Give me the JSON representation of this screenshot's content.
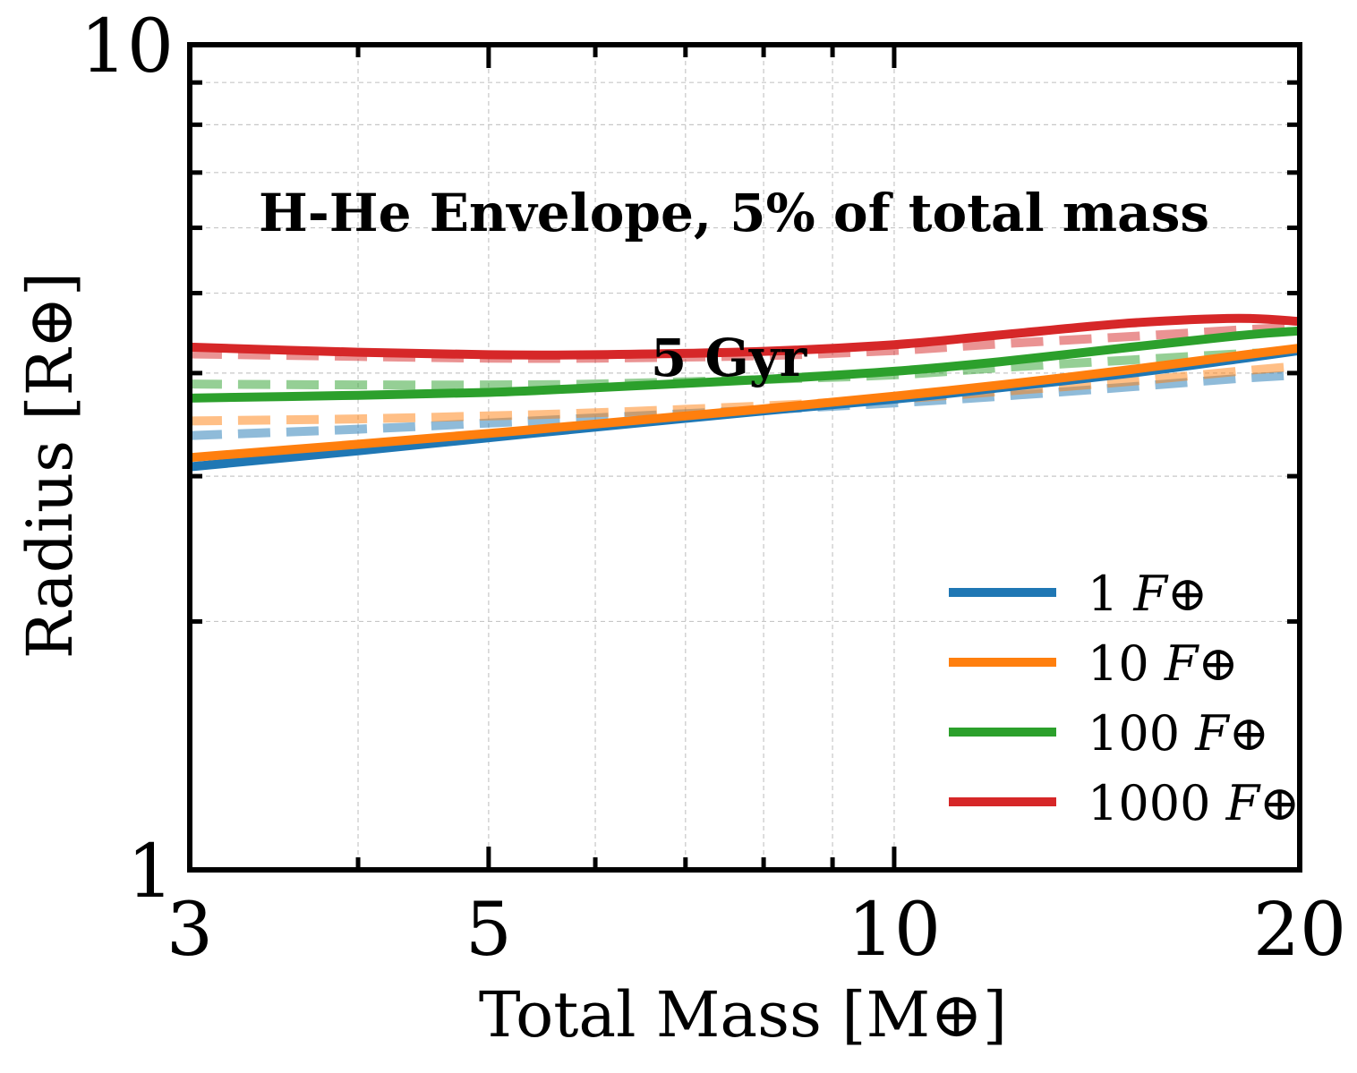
{
  "chart_data": {
    "type": "line",
    "title": "",
    "xlabel": "Total Mass [M⊕]",
    "ylabel": "Radius [R⊕]",
    "xscale": "log",
    "yscale": "log",
    "xlim": [
      3,
      20
    ],
    "ylim": [
      1,
      10
    ],
    "x_ticks": [
      {
        "value": 3,
        "label": "3"
      },
      {
        "value": 5,
        "label": "5"
      },
      {
        "value": 10,
        "label": "10"
      },
      {
        "value": 20,
        "label": "20"
      }
    ],
    "y_ticks": [
      {
        "value": 1,
        "label": "1"
      },
      {
        "value": 10,
        "label": "10"
      }
    ],
    "grid": true,
    "legend_position": "bottom-right",
    "annotations": [
      {
        "text": "H-He Envelope, 5% of total mass"
      },
      {
        "text": "5 Gyr"
      }
    ],
    "x": [
      3,
      4,
      5,
      6,
      8,
      10,
      12,
      15,
      18,
      20
    ],
    "series": [
      {
        "name": "1 F⊕",
        "legend_number": "1",
        "legend_symbol": "F⊕",
        "color": "#1f77b4",
        "style": "solid",
        "values": [
          3.08,
          3.22,
          3.34,
          3.44,
          3.6,
          3.72,
          3.84,
          4.0,
          4.16,
          4.26
        ]
      },
      {
        "name": "10 F⊕",
        "legend_number": "10",
        "legend_symbol": "F⊕",
        "color": "#ff7f0e",
        "style": "solid",
        "values": [
          3.16,
          3.28,
          3.38,
          3.47,
          3.62,
          3.75,
          3.87,
          4.04,
          4.2,
          4.29
        ]
      },
      {
        "name": "100 F⊕",
        "legend_number": "100",
        "legend_symbol": "F⊕",
        "color": "#2ca02c",
        "style": "solid",
        "values": [
          3.73,
          3.76,
          3.79,
          3.84,
          3.93,
          4.02,
          4.13,
          4.3,
          4.44,
          4.5
        ]
      },
      {
        "name": "1000 F⊕",
        "legend_number": "1000",
        "legend_symbol": "F⊕",
        "color": "#d62728",
        "style": "solid",
        "values": [
          4.3,
          4.24,
          4.21,
          4.21,
          4.25,
          4.33,
          4.45,
          4.6,
          4.66,
          4.62
        ]
      },
      {
        "name": "1 F⊕ (dashed)",
        "color": "#1f77b4",
        "style": "dashed",
        "alpha": 0.5,
        "values": [
          3.36,
          3.42,
          3.48,
          3.53,
          3.61,
          3.68,
          3.75,
          3.85,
          3.94,
          3.98
        ]
      },
      {
        "name": "10 F⊕ (dashed)",
        "color": "#ff7f0e",
        "style": "dashed",
        "alpha": 0.5,
        "values": [
          3.5,
          3.52,
          3.55,
          3.58,
          3.65,
          3.72,
          3.8,
          3.91,
          4.02,
          4.08
        ]
      },
      {
        "name": "100 F⊕ (dashed)",
        "color": "#2ca02c",
        "style": "dashed",
        "alpha": 0.5,
        "values": [
          3.88,
          3.87,
          3.87,
          3.88,
          3.93,
          3.98,
          4.06,
          4.15,
          4.22,
          4.25
        ]
      },
      {
        "name": "1000 F⊕ (dashed)",
        "color": "#d62728",
        "style": "dashed",
        "alpha": 0.5,
        "values": [
          4.22,
          4.19,
          4.17,
          4.17,
          4.2,
          4.26,
          4.34,
          4.43,
          4.51,
          4.55
        ]
      }
    ]
  }
}
